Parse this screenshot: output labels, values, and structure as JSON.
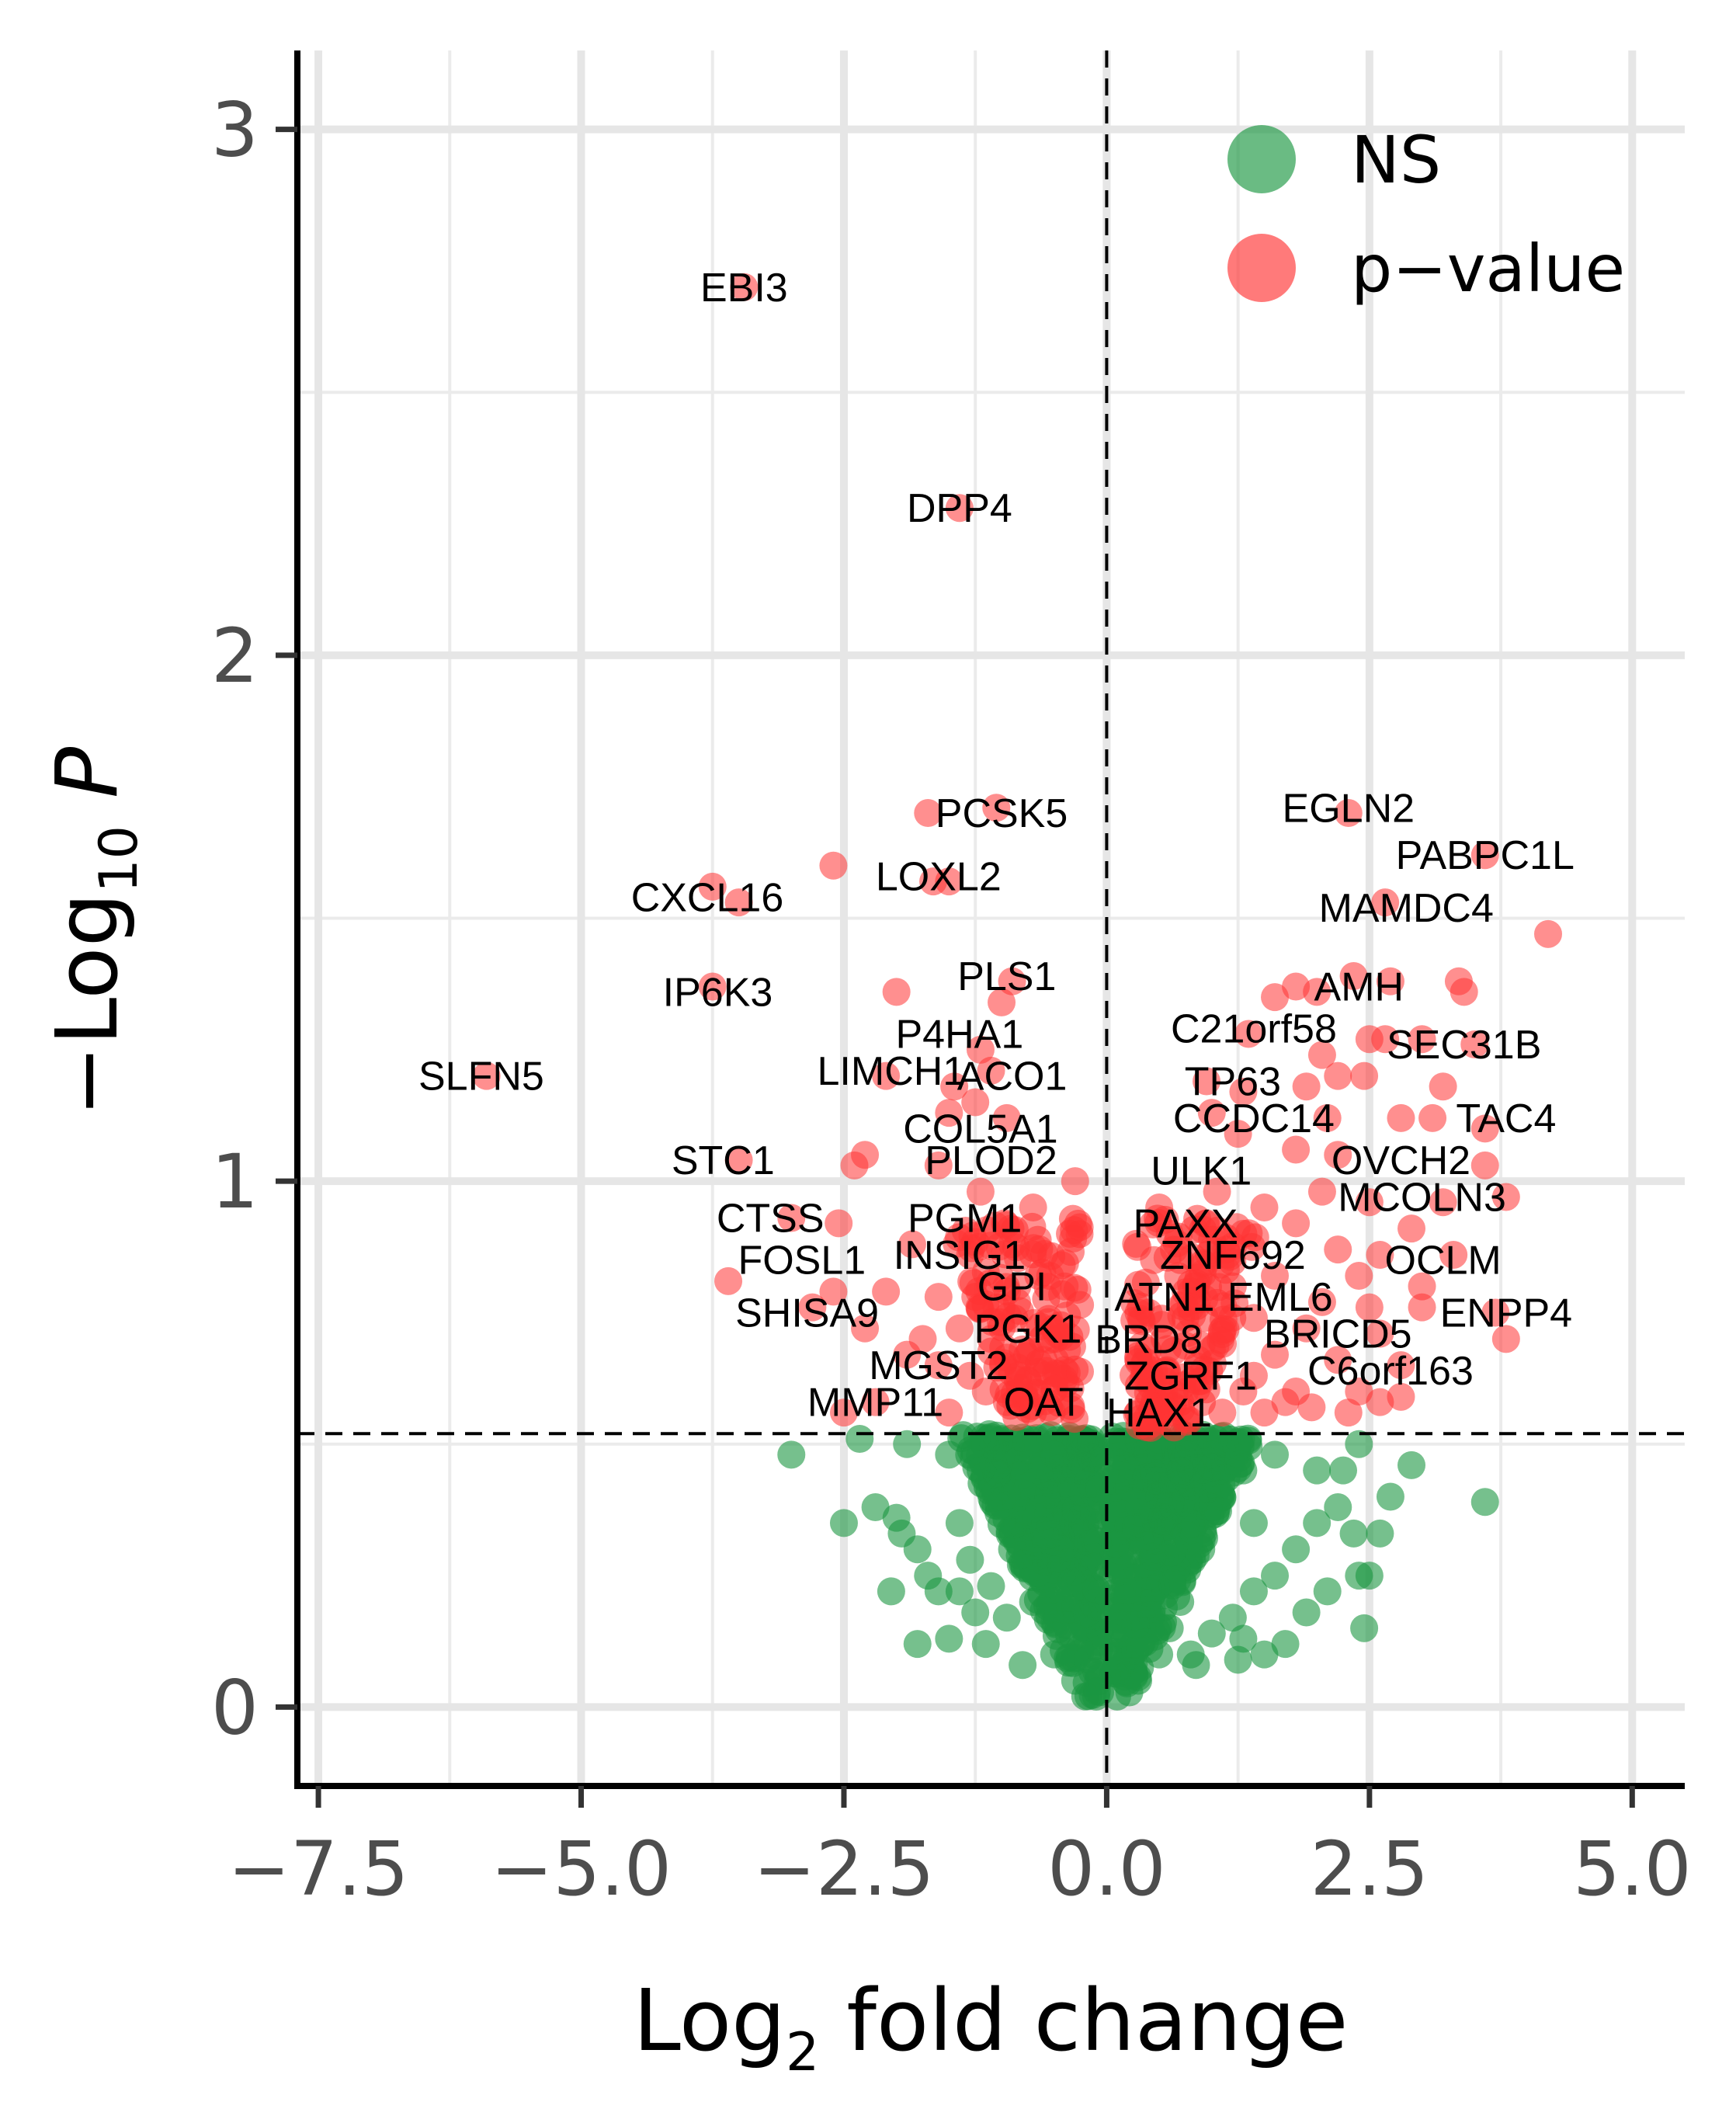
{
  "chart_data": {
    "type": "scatter",
    "title": "",
    "xlabel": "Log2 fold change",
    "ylabel": "-Log10 P",
    "xlim": [
      -7.7,
      5.5
    ],
    "ylim": [
      -0.15,
      3.15
    ],
    "grid": true,
    "x_ticks": [
      "−7.5",
      "−5.0",
      "−2.5",
      "0.0",
      "2.5",
      "5.0"
    ],
    "x_tick_values": [
      -7.5,
      -5.0,
      -2.5,
      0.0,
      2.5,
      5.0
    ],
    "y_ticks": [
      "0",
      "1",
      "2",
      "3"
    ],
    "y_tick_values": [
      0,
      1,
      2,
      3
    ],
    "thresholds": {
      "log2fc": 0.0,
      "neg_log10_p": 0.52
    },
    "legend": {
      "position": "top-right",
      "entries": [
        {
          "name": "NS",
          "color": "#1a9641"
        },
        {
          "name": "p−value",
          "color": "#ff3333"
        }
      ]
    },
    "series": [
      {
        "name": "NS",
        "color": "#1a9641",
        "points": [
          [
            -3.0,
            0.48
          ],
          [
            -2.35,
            0.51
          ],
          [
            -1.9,
            0.5
          ],
          [
            -1.5,
            0.48
          ],
          [
            -1.2,
            0.45
          ],
          [
            -1.0,
            0.4
          ],
          [
            -0.9,
            0.3
          ],
          [
            -0.7,
            0.2
          ],
          [
            -0.5,
            0.1
          ],
          [
            -0.3,
            0.05
          ],
          [
            -0.1,
            0.02
          ],
          [
            0.1,
            0.02
          ],
          [
            0.3,
            0.05
          ],
          [
            0.5,
            0.1
          ],
          [
            0.7,
            0.2
          ],
          [
            0.9,
            0.3
          ],
          [
            1.1,
            0.4
          ],
          [
            1.3,
            0.45
          ],
          [
            1.6,
            0.48
          ],
          [
            2.0,
            0.45
          ],
          [
            2.4,
            0.5
          ],
          [
            -2.5,
            0.35
          ],
          [
            -2.2,
            0.38
          ],
          [
            -2.0,
            0.36
          ],
          [
            -1.95,
            0.33
          ],
          [
            -1.8,
            0.3
          ],
          [
            -1.7,
            0.25
          ],
          [
            -1.6,
            0.22
          ],
          [
            -1.4,
            0.22
          ],
          [
            -1.3,
            0.28
          ],
          [
            -2.05,
            0.22
          ],
          [
            -1.8,
            0.12
          ],
          [
            -1.5,
            0.13
          ],
          [
            -1.25,
            0.18
          ],
          [
            -1.1,
            0.23
          ],
          [
            -0.95,
            0.17
          ],
          [
            -0.85,
            0.35
          ],
          [
            -0.75,
            0.42
          ],
          [
            -0.65,
            0.45
          ],
          [
            -0.55,
            0.38
          ],
          [
            -0.45,
            0.3
          ],
          [
            1.0,
            0.14
          ],
          [
            1.2,
            0.17
          ],
          [
            1.4,
            0.22
          ],
          [
            1.6,
            0.25
          ],
          [
            1.8,
            0.3
          ],
          [
            2.0,
            0.35
          ],
          [
            2.2,
            0.38
          ],
          [
            2.4,
            0.25
          ],
          [
            2.45,
            0.15
          ],
          [
            2.5,
            0.25
          ],
          [
            2.6,
            0.33
          ],
          [
            2.35,
            0.33
          ],
          [
            2.1,
            0.22
          ],
          [
            1.9,
            0.18
          ],
          [
            1.7,
            0.12
          ],
          [
            1.5,
            0.1
          ],
          [
            1.3,
            0.13
          ],
          [
            0.8,
            0.1
          ],
          [
            0.6,
            0.15
          ],
          [
            0.4,
            0.25
          ],
          [
            0.3,
            0.35
          ],
          [
            0.25,
            0.45
          ],
          [
            -0.25,
            0.45
          ],
          [
            -0.35,
            0.35
          ],
          [
            -0.6,
            0.25
          ],
          [
            2.9,
            0.46
          ],
          [
            3.6,
            0.39
          ],
          [
            2.25,
            0.45
          ],
          [
            2.7,
            0.4
          ],
          [
            -0.8,
            0.08
          ],
          [
            0.85,
            0.08
          ],
          [
            -1.15,
            0.12
          ],
          [
            1.25,
            0.09
          ],
          [
            0.5,
            0.4
          ],
          [
            0.7,
            0.45
          ],
          [
            -0.5,
            0.48
          ],
          [
            1.0,
            0.48
          ],
          [
            -1.0,
            0.48
          ],
          [
            1.4,
            0.35
          ],
          [
            -1.4,
            0.35
          ]
        ]
      },
      {
        "name": "p−value",
        "color": "#ff3333",
        "points": [
          [
            -3.45,
            2.7
          ],
          [
            -1.4,
            2.28
          ],
          [
            -1.7,
            1.7
          ],
          [
            -1.05,
            1.71
          ],
          [
            -2.6,
            1.6
          ],
          [
            -1.65,
            1.57
          ],
          [
            -1.5,
            1.57
          ],
          [
            -3.75,
            1.56
          ],
          [
            -3.5,
            1.53
          ],
          [
            -3.75,
            1.37
          ],
          [
            -5.9,
            1.2
          ],
          [
            -0.9,
            1.38
          ],
          [
            -1.0,
            1.34
          ],
          [
            -2.0,
            1.36
          ],
          [
            -1.2,
            1.25
          ],
          [
            -2.1,
            1.2
          ],
          [
            -1.45,
            1.18
          ],
          [
            -1.1,
            1.21
          ],
          [
            -1.25,
            1.15
          ],
          [
            -1.5,
            1.13
          ],
          [
            -0.95,
            1.12
          ],
          [
            -2.3,
            1.05
          ],
          [
            -2.4,
            1.03
          ],
          [
            -1.6,
            1.03
          ],
          [
            -1.2,
            0.98
          ],
          [
            -3.5,
            1.04
          ],
          [
            -3.0,
            0.93
          ],
          [
            -2.55,
            0.92
          ],
          [
            -1.85,
            0.88
          ],
          [
            -1.3,
            0.86
          ],
          [
            -3.6,
            0.81
          ],
          [
            -2.6,
            0.79
          ],
          [
            -2.1,
            0.79
          ],
          [
            -1.6,
            0.78
          ],
          [
            -1.0,
            0.76
          ],
          [
            -2.8,
            0.76
          ],
          [
            -2.3,
            0.72
          ],
          [
            -1.4,
            0.72
          ],
          [
            -1.1,
            0.7
          ],
          [
            -0.8,
            0.68
          ],
          [
            -1.9,
            0.67
          ],
          [
            -1.6,
            0.65
          ],
          [
            -1.3,
            0.63
          ],
          [
            -2.2,
            0.58
          ],
          [
            -1.15,
            0.6
          ],
          [
            -0.95,
            0.58
          ],
          [
            -0.75,
            0.62
          ],
          [
            -0.6,
            0.66
          ],
          [
            -0.5,
            0.72
          ],
          [
            -0.4,
            0.8
          ],
          [
            -0.35,
            0.9
          ],
          [
            -0.3,
            1.0
          ],
          [
            -0.65,
            0.82
          ],
          [
            -0.85,
            0.8
          ],
          [
            -0.55,
            0.57
          ],
          [
            -0.7,
            0.56
          ],
          [
            -1.5,
            0.56
          ],
          [
            -2.5,
            0.56
          ],
          [
            -1.75,
            0.7
          ],
          [
            -1.25,
            0.78
          ],
          [
            -0.9,
            0.88
          ],
          [
            -0.7,
            0.95
          ],
          [
            2.3,
            1.7
          ],
          [
            3.6,
            1.62
          ],
          [
            2.65,
            1.53
          ],
          [
            4.2,
            1.47
          ],
          [
            2.35,
            1.39
          ],
          [
            2.7,
            1.38
          ],
          [
            3.35,
            1.38
          ],
          [
            3.4,
            1.36
          ],
          [
            1.6,
            1.35
          ],
          [
            1.8,
            1.37
          ],
          [
            2.0,
            1.36
          ],
          [
            1.35,
            1.28
          ],
          [
            2.5,
            1.27
          ],
          [
            2.65,
            1.27
          ],
          [
            3.0,
            1.27
          ],
          [
            3.5,
            1.26
          ],
          [
            2.05,
            1.24
          ],
          [
            2.45,
            1.2
          ],
          [
            2.2,
            1.2
          ],
          [
            3.2,
            1.18
          ],
          [
            1.9,
            1.18
          ],
          [
            1.3,
            1.17
          ],
          [
            0.95,
            1.19
          ],
          [
            1.0,
            1.13
          ],
          [
            2.1,
            1.12
          ],
          [
            2.8,
            1.12
          ],
          [
            3.1,
            1.12
          ],
          [
            3.6,
            1.1
          ],
          [
            1.25,
            1.09
          ],
          [
            1.8,
            1.06
          ],
          [
            2.2,
            1.05
          ],
          [
            3.6,
            1.03
          ],
          [
            1.05,
            0.98
          ],
          [
            2.05,
            0.98
          ],
          [
            2.5,
            0.96
          ],
          [
            3.2,
            0.96
          ],
          [
            3.8,
            0.97
          ],
          [
            1.5,
            0.95
          ],
          [
            0.95,
            0.92
          ],
          [
            1.8,
            0.92
          ],
          [
            2.9,
            0.91
          ],
          [
            0.6,
            0.9
          ],
          [
            1.3,
            0.9
          ],
          [
            1.15,
            0.86
          ],
          [
            2.2,
            0.87
          ],
          [
            2.6,
            0.86
          ],
          [
            3.3,
            0.86
          ],
          [
            0.7,
            0.85
          ],
          [
            1.6,
            0.82
          ],
          [
            2.4,
            0.82
          ],
          [
            3.0,
            0.8
          ],
          [
            1.2,
            0.8
          ],
          [
            2.05,
            0.77
          ],
          [
            2.5,
            0.76
          ],
          [
            3.0,
            0.76
          ],
          [
            3.7,
            0.75
          ],
          [
            0.8,
            0.76
          ],
          [
            1.4,
            0.74
          ],
          [
            1.9,
            0.72
          ],
          [
            2.6,
            0.71
          ],
          [
            3.8,
            0.7
          ],
          [
            0.55,
            0.7
          ],
          [
            1.0,
            0.68
          ],
          [
            1.6,
            0.67
          ],
          [
            2.2,
            0.66
          ],
          [
            2.8,
            0.65
          ],
          [
            0.45,
            0.64
          ],
          [
            0.9,
            0.62
          ],
          [
            1.3,
            0.6
          ],
          [
            1.8,
            0.6
          ],
          [
            2.4,
            0.6
          ],
          [
            2.6,
            0.58
          ],
          [
            2.8,
            0.59
          ],
          [
            0.4,
            0.58
          ],
          [
            0.6,
            0.56
          ],
          [
            1.1,
            0.56
          ],
          [
            1.5,
            0.56
          ],
          [
            0.3,
            0.56
          ],
          [
            0.35,
            0.65
          ],
          [
            0.4,
            0.75
          ],
          [
            0.45,
            0.85
          ],
          [
            0.5,
            0.95
          ],
          [
            0.55,
            0.62
          ],
          [
            0.7,
            0.58
          ],
          [
            1.95,
            0.57
          ],
          [
            1.7,
            0.58
          ],
          [
            1.4,
            0.63
          ],
          [
            2.3,
            0.56
          ]
        ]
      }
    ],
    "annotations": [
      {
        "label": "EBI3",
        "x": -3.45,
        "y": 2.7
      },
      {
        "label": "DPP4",
        "x": -1.4,
        "y": 2.28
      },
      {
        "label": "PCSK5",
        "x": -1.0,
        "y": 1.7
      },
      {
        "label": "LOXL2",
        "x": -1.6,
        "y": 1.58
      },
      {
        "label": "CXCL16",
        "x": -3.8,
        "y": 1.54
      },
      {
        "label": "IP6K3",
        "x": -3.7,
        "y": 1.36
      },
      {
        "label": "PLS1",
        "x": -0.95,
        "y": 1.39
      },
      {
        "label": "P4HA1",
        "x": -1.4,
        "y": 1.28
      },
      {
        "label": "LIMCH1",
        "x": -2.05,
        "y": 1.21
      },
      {
        "label": "ACO1",
        "x": -0.9,
        "y": 1.2
      },
      {
        "label": "SLFN5",
        "x": -5.95,
        "y": 1.2
      },
      {
        "label": "COL5A1",
        "x": -1.2,
        "y": 1.1
      },
      {
        "label": "PLOD2",
        "x": -1.1,
        "y": 1.04
      },
      {
        "label": "STC1",
        "x": -3.65,
        "y": 1.04
      },
      {
        "label": "PGM1",
        "x": -1.35,
        "y": 0.93
      },
      {
        "label": "CTSS",
        "x": -3.2,
        "y": 0.93
      },
      {
        "label": "INSIG1",
        "x": -1.4,
        "y": 0.86
      },
      {
        "label": "FOSL1",
        "x": -2.9,
        "y": 0.85
      },
      {
        "label": "GPI",
        "x": -0.9,
        "y": 0.8
      },
      {
        "label": "SHISA9",
        "x": -2.85,
        "y": 0.75
      },
      {
        "label": "PGK1",
        "x": -0.75,
        "y": 0.72
      },
      {
        "label": "MGST2",
        "x": -1.6,
        "y": 0.65
      },
      {
        "label": "MMP11",
        "x": -2.2,
        "y": 0.58
      },
      {
        "label": "OAT",
        "x": -0.6,
        "y": 0.58
      },
      {
        "label": "EGLN2",
        "x": 2.3,
        "y": 1.71
      },
      {
        "label": "PABPC1L",
        "x": 3.6,
        "y": 1.62
      },
      {
        "label": "MAMDC4",
        "x": 2.85,
        "y": 1.52
      },
      {
        "label": "AMH",
        "x": 2.4,
        "y": 1.37
      },
      {
        "label": "C21orf58",
        "x": 1.4,
        "y": 1.29
      },
      {
        "label": "SEC31B",
        "x": 3.4,
        "y": 1.26
      },
      {
        "label": "TP63",
        "x": 1.2,
        "y": 1.19
      },
      {
        "label": "CCDC14",
        "x": 1.4,
        "y": 1.12
      },
      {
        "label": "TAC4",
        "x": 3.8,
        "y": 1.12
      },
      {
        "label": "OVCH2",
        "x": 2.8,
        "y": 1.04
      },
      {
        "label": "ULK1",
        "x": 0.9,
        "y": 1.02
      },
      {
        "label": "MCOLN3",
        "x": 3.0,
        "y": 0.97
      },
      {
        "label": "PAXX",
        "x": 0.75,
        "y": 0.92
      },
      {
        "label": "ZNF692",
        "x": 1.2,
        "y": 0.86
      },
      {
        "label": "OCLM",
        "x": 3.2,
        "y": 0.85
      },
      {
        "label": "ATN1",
        "x": 0.55,
        "y": 0.78
      },
      {
        "label": "EML6",
        "x": 1.65,
        "y": 0.78
      },
      {
        "label": "ENPP4",
        "x": 3.8,
        "y": 0.75
      },
      {
        "label": "BRD8",
        "x": 0.4,
        "y": 0.7
      },
      {
        "label": "BRICD5",
        "x": 2.2,
        "y": 0.71
      },
      {
        "label": "ZGRF1",
        "x": 0.8,
        "y": 0.63
      },
      {
        "label": "C6orf163",
        "x": 2.7,
        "y": 0.64
      },
      {
        "label": "HAX1",
        "x": 0.5,
        "y": 0.56
      }
    ]
  }
}
